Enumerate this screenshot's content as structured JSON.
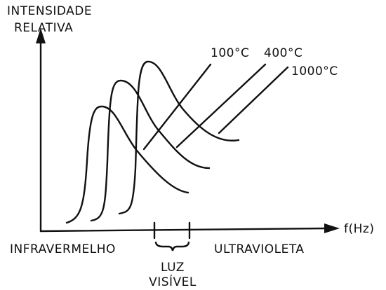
{
  "y_axis": {
    "label_lines": [
      "INTENSIDADE",
      "RELATIVA"
    ]
  },
  "x_axis": {
    "label": "f(Hz)",
    "left_label": "INFRAVERMELHO",
    "right_label": "ULTRAVIOLETA",
    "visible_band_lines": [
      "LUZ",
      "VISÍVEL"
    ]
  },
  "curves": [
    {
      "label": "100°C"
    },
    {
      "label": "400°C"
    },
    {
      "label": "1000°C"
    }
  ]
}
